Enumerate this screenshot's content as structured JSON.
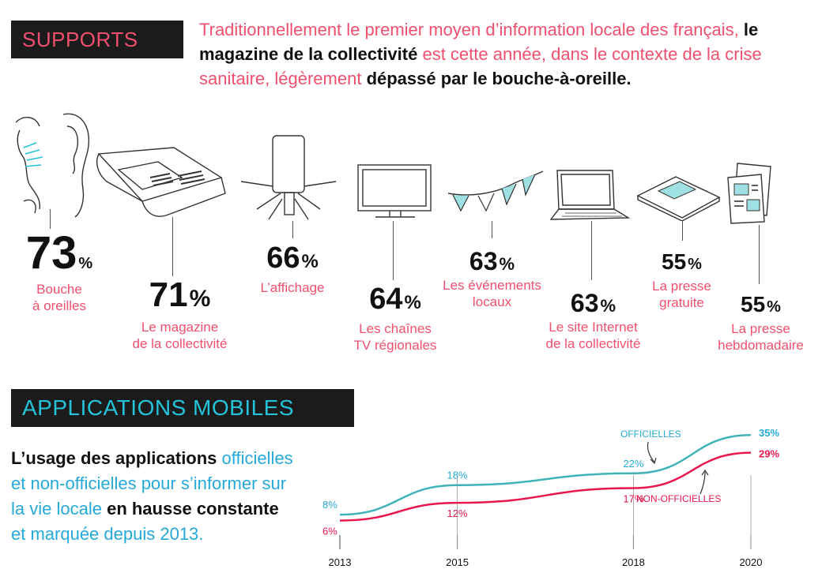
{
  "supports": {
    "title": "SUPPORTS",
    "intro": {
      "part1": "Traditionnellement le premier moyen d’information locale des français, ",
      "bold1": "le magazine de la collectivité",
      "part2": " est cette année, dans le contexte de la crise sanitaire, légèrement ",
      "bold2": "dépassé par le bouche-à-oreille."
    },
    "items": [
      {
        "value": "73",
        "unit": "%",
        "label1": "Bouche",
        "label2": "à oreilles",
        "icon": "ear-icon"
      },
      {
        "value": "71",
        "unit": "%",
        "label1": "Le magazine",
        "label2": "de la collectivité",
        "icon": "magazine-icon"
      },
      {
        "value": "66",
        "unit": "%",
        "label1": "L’affichage",
        "label2": "",
        "icon": "poster-icon"
      },
      {
        "value": "64",
        "unit": "%",
        "label1": "Les chaînes",
        "label2": "TV régionales",
        "icon": "tv-icon"
      },
      {
        "value": "63",
        "unit": "%",
        "label1": "Les événements",
        "label2": "locaux",
        "icon": "bunting-icon"
      },
      {
        "value": "63",
        "unit": "%",
        "label1": "Le site Internet",
        "label2": "de la collectivité",
        "icon": "laptop-icon"
      },
      {
        "value": "55",
        "unit": "%",
        "label1": "La presse",
        "label2": "gratuite",
        "icon": "free-press-icon"
      },
      {
        "value": "55",
        "unit": "%",
        "label1": "La presse",
        "label2": "hebdomadaire",
        "icon": "weekly-press-icon"
      }
    ]
  },
  "apps": {
    "title": "APPLICATIONS MOBILES",
    "text": {
      "bold1": "L’usage des applications",
      "part1": " officielles et non-officielles pour s’informer sur la vie locale ",
      "bold2": "en hausse constante",
      "part2": " et marquée depuis 2013."
    }
  },
  "chart_data": {
    "type": "line",
    "x": [
      2013,
      2015,
      2018,
      2020
    ],
    "x_ticks": [
      "2013",
      "2015",
      "2018",
      "2020"
    ],
    "series": [
      {
        "name": "OFFICIELLES",
        "values": [
          8,
          18,
          22,
          35
        ],
        "labels": [
          "8%",
          "18%",
          "22%",
          "35%"
        ],
        "color": "#3fb3b8"
      },
      {
        "name": "NON-OFFICIELLES",
        "values": [
          6,
          12,
          17,
          29
        ],
        "labels": [
          "6%",
          "12%",
          "17%",
          "29%"
        ],
        "color": "#e8174d"
      }
    ],
    "ylim": [
      0,
      38
    ],
    "colors": {
      "pink": "#f0506e",
      "cyan": "#25c3d9",
      "dark": "#1b1b1b"
    }
  }
}
